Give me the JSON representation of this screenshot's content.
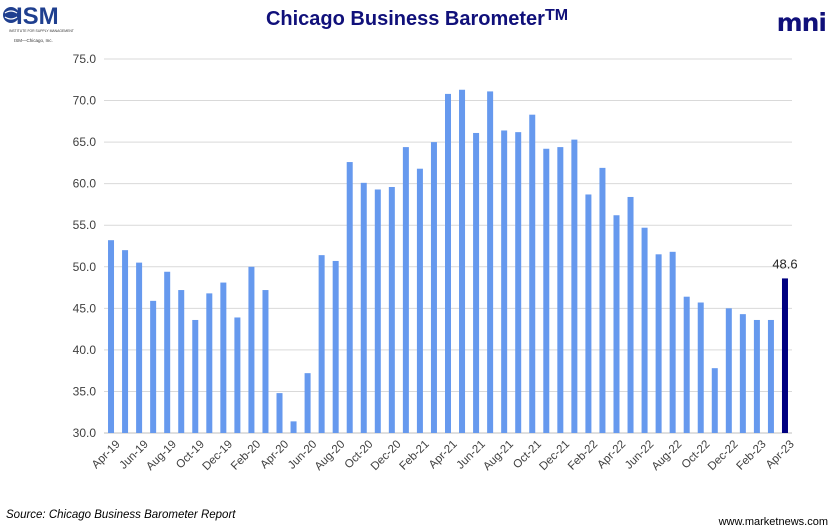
{
  "header": {
    "logo_text": "ISM",
    "logo_subtext": "INSTITUTE FOR SUPPLY MANAGEMENT",
    "logo_org": "ISM—Chicago, Inc.",
    "title": "Chicago Business Barometer",
    "title_tm": "TM",
    "brand": "mni"
  },
  "footer": {
    "source": "Source: Chicago Business Barometer Report",
    "website": "www.marketnews.com"
  },
  "colors": {
    "bar": "#6699ee",
    "highlight_bar": "#000080",
    "grid": "#d9d9d9",
    "title": "#10107a"
  },
  "chart_data": {
    "type": "bar",
    "title": "Chicago Business Barometer™",
    "xlabel": "",
    "ylabel": "",
    "ylim": [
      30,
      75
    ],
    "yticks": [
      "30.0",
      "35.0",
      "40.0",
      "45.0",
      "50.0",
      "55.0",
      "60.0",
      "65.0",
      "70.0",
      "75.0"
    ],
    "grid": true,
    "categories": [
      "Apr-19",
      "May-19",
      "Jun-19",
      "Jul-19",
      "Aug-19",
      "Sep-19",
      "Oct-19",
      "Nov-19",
      "Dec-19",
      "Jan-20",
      "Feb-20",
      "Mar-20",
      "Apr-20",
      "May-20",
      "Jun-20",
      "Jul-20",
      "Aug-20",
      "Sep-20",
      "Oct-20",
      "Nov-20",
      "Dec-20",
      "Jan-21",
      "Feb-21",
      "Mar-21",
      "Apr-21",
      "May-21",
      "Jun-21",
      "Jul-21",
      "Aug-21",
      "Sep-21",
      "Oct-21",
      "Nov-21",
      "Dec-21",
      "Jan-22",
      "Feb-22",
      "Mar-22",
      "Apr-22",
      "May-22",
      "Jun-22",
      "Jul-22",
      "Aug-22",
      "Sep-22",
      "Oct-22",
      "Nov-22",
      "Dec-22",
      "Jan-23",
      "Feb-23",
      "Mar-23",
      "Apr-23"
    ],
    "xtick_labels": [
      "Apr-19",
      "Jun-19",
      "Aug-19",
      "Oct-19",
      "Dec-19",
      "Feb-20",
      "Apr-20",
      "Jun-20",
      "Aug-20",
      "Oct-20",
      "Dec-20",
      "Feb-21",
      "Apr-21",
      "Jun-21",
      "Aug-21",
      "Oct-21",
      "Dec-21",
      "Feb-22",
      "Apr-22",
      "Jun-22",
      "Aug-22",
      "Oct-22",
      "Dec-22",
      "Feb-23",
      "Apr-23"
    ],
    "series": [
      {
        "values": [
          53.2,
          52.0,
          50.5,
          45.9,
          49.4,
          47.2,
          43.6,
          46.8,
          48.1,
          43.9,
          50.0,
          47.2,
          34.8,
          31.4,
          37.2,
          51.4,
          50.7,
          62.6,
          60.1,
          59.3,
          59.6,
          64.4,
          61.8,
          65.0,
          70.8,
          71.3,
          66.1,
          71.1,
          66.4,
          66.2,
          68.3,
          64.2,
          64.4,
          65.3,
          58.7,
          61.9,
          56.2,
          58.4,
          54.7,
          51.5,
          51.8,
          46.4,
          45.7,
          37.8,
          45.0,
          44.3,
          43.6,
          43.6,
          48.6
        ],
        "highlight_index": 48
      }
    ],
    "annotations": [
      {
        "category": "Apr-23",
        "text": "48.6"
      }
    ]
  }
}
